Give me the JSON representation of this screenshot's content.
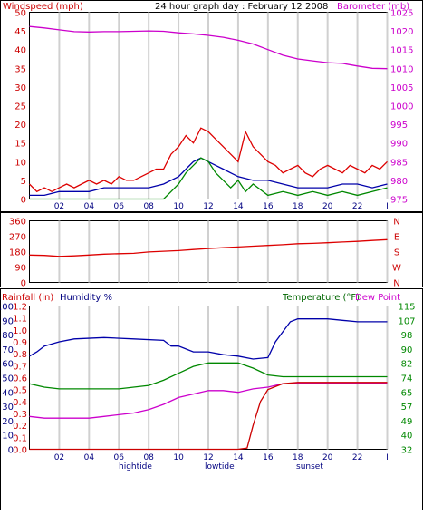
{
  "chart_data": [
    {
      "type": "line",
      "title": "24 hour graph day : February 12 2008",
      "left_axis_label": "Windspeed (mph)",
      "right_axis_label": "Barometer (mb)",
      "x_ticks": [
        "02",
        "04",
        "06",
        "08",
        "10",
        "12",
        "14",
        "16",
        "18",
        "20",
        "22",
        "I"
      ],
      "annotations": [
        "hightide",
        "lowtide",
        "sunset"
      ],
      "left_ylim": [
        0,
        50
      ],
      "left_ticks": [
        0,
        5,
        10,
        15,
        20,
        25,
        30,
        35,
        40,
        45,
        50
      ],
      "right_ylim": [
        975,
        1025
      ],
      "right_ticks": [
        975,
        980,
        985,
        990,
        995,
        1000,
        1005,
        1010,
        1015,
        1020,
        1025
      ],
      "series": [
        {
          "color": "#cc00cc",
          "axis": "right",
          "values": [
            [
              0,
              1021.2
            ],
            [
              1,
              1020.8
            ],
            [
              2,
              1020.3
            ],
            [
              3,
              1019.8
            ],
            [
              4,
              1019.7
            ],
            [
              5,
              1019.8
            ],
            [
              6,
              1019.8
            ],
            [
              7,
              1019.9
            ],
            [
              8,
              1020.0
            ],
            [
              9,
              1019.9
            ],
            [
              10,
              1019.5
            ],
            [
              11,
              1019.2
            ],
            [
              12,
              1018.8
            ],
            [
              13,
              1018.3
            ],
            [
              14,
              1017.5
            ],
            [
              15,
              1016.5
            ],
            [
              16,
              1015.0
            ],
            [
              17,
              1013.5
            ],
            [
              18,
              1012.5
            ],
            [
              19,
              1012.0
            ],
            [
              20,
              1011.5
            ],
            [
              21,
              1011.3
            ],
            [
              22,
              1010.6
            ],
            [
              23,
              1010.0
            ],
            [
              24,
              1009.9
            ]
          ]
        },
        {
          "color": "#dd0000",
          "axis": "left",
          "values": [
            [
              0,
              4
            ],
            [
              0.5,
              2
            ],
            [
              1,
              3
            ],
            [
              1.5,
              2
            ],
            [
              2,
              3
            ],
            [
              2.5,
              4
            ],
            [
              3,
              3
            ],
            [
              3.5,
              4
            ],
            [
              4,
              5
            ],
            [
              4.5,
              4
            ],
            [
              5,
              5
            ],
            [
              5.5,
              4
            ],
            [
              6,
              6
            ],
            [
              6.5,
              5
            ],
            [
              7,
              5
            ],
            [
              7.5,
              6
            ],
            [
              8,
              7
            ],
            [
              8.5,
              8
            ],
            [
              9,
              8
            ],
            [
              9.5,
              12
            ],
            [
              10,
              14
            ],
            [
              10.5,
              17
            ],
            [
              11,
              15
            ],
            [
              11.5,
              19
            ],
            [
              12,
              18
            ],
            [
              12.5,
              16
            ],
            [
              13,
              14
            ],
            [
              13.5,
              12
            ],
            [
              14,
              10
            ],
            [
              14.5,
              18
            ],
            [
              15,
              14
            ],
            [
              15.5,
              12
            ],
            [
              16,
              10
            ],
            [
              16.5,
              9
            ],
            [
              17,
              7
            ],
            [
              17.5,
              8
            ],
            [
              18,
              9
            ],
            [
              18.5,
              7
            ],
            [
              19,
              6
            ],
            [
              19.5,
              8
            ],
            [
              20,
              9
            ],
            [
              20.5,
              8
            ],
            [
              21,
              7
            ],
            [
              21.5,
              9
            ],
            [
              22,
              8
            ],
            [
              22.5,
              7
            ],
            [
              23,
              9
            ],
            [
              23.5,
              8
            ],
            [
              24,
              10
            ]
          ]
        },
        {
          "color": "#0000aa",
          "axis": "left",
          "values": [
            [
              0,
              1
            ],
            [
              1,
              1
            ],
            [
              2,
              2
            ],
            [
              3,
              2
            ],
            [
              4,
              2
            ],
            [
              5,
              3
            ],
            [
              6,
              3
            ],
            [
              7,
              3
            ],
            [
              8,
              3
            ],
            [
              9,
              4
            ],
            [
              10,
              6
            ],
            [
              10.5,
              8
            ],
            [
              11,
              10
            ],
            [
              11.5,
              11
            ],
            [
              12,
              10
            ],
            [
              12.5,
              9
            ],
            [
              13,
              8
            ],
            [
              13.5,
              7
            ],
            [
              14,
              6
            ],
            [
              15,
              5
            ],
            [
              16,
              5
            ],
            [
              17,
              4
            ],
            [
              18,
              3
            ],
            [
              19,
              3
            ],
            [
              20,
              3
            ],
            [
              21,
              4
            ],
            [
              22,
              4
            ],
            [
              23,
              3
            ],
            [
              24,
              4
            ]
          ]
        },
        {
          "color": "#008800",
          "axis": "left",
          "values": [
            [
              0,
              0
            ],
            [
              2,
              0
            ],
            [
              4,
              0
            ],
            [
              6,
              0
            ],
            [
              8,
              0
            ],
            [
              9,
              0
            ],
            [
              9.5,
              2
            ],
            [
              10,
              4
            ],
            [
              10.5,
              7
            ],
            [
              11,
              9
            ],
            [
              11.5,
              11
            ],
            [
              12,
              10
            ],
            [
              12.5,
              7
            ],
            [
              13,
              5
            ],
            [
              13.5,
              3
            ],
            [
              14,
              5
            ],
            [
              14.5,
              2
            ],
            [
              15,
              4
            ],
            [
              16,
              1
            ],
            [
              17,
              2
            ],
            [
              18,
              1
            ],
            [
              19,
              2
            ],
            [
              20,
              1
            ],
            [
              21,
              2
            ],
            [
              22,
              1
            ],
            [
              23,
              2
            ],
            [
              24,
              3
            ]
          ]
        }
      ]
    },
    {
      "type": "line",
      "ylim": [
        0,
        360
      ],
      "left_ticks": [
        0,
        90,
        180,
        270,
        360
      ],
      "right_labels": [
        "N",
        "W",
        "S",
        "E",
        "N"
      ],
      "series": [
        {
          "color": "#dd0000",
          "values": [
            [
              0,
              160
            ],
            [
              1,
              158
            ],
            [
              2,
              152
            ],
            [
              3,
              155
            ],
            [
              4,
              160
            ],
            [
              5,
              165
            ],
            [
              6,
              168
            ],
            [
              7,
              170
            ],
            [
              8,
              178
            ],
            [
              9,
              182
            ],
            [
              10,
              186
            ],
            [
              11,
              192
            ],
            [
              12,
              198
            ],
            [
              13,
              203
            ],
            [
              14,
              207
            ],
            [
              15,
              212
            ],
            [
              16,
              216
            ],
            [
              17,
              220
            ],
            [
              18,
              226
            ],
            [
              19,
              228
            ],
            [
              20,
              232
            ],
            [
              21,
              236
            ],
            [
              22,
              240
            ],
            [
              23,
              245
            ],
            [
              24,
              250
            ]
          ]
        }
      ]
    },
    {
      "type": "line",
      "labels": {
        "rainfall": "Rainfall (in)",
        "humidity": "Humidity %",
        "temperature": "Temperature (°F)",
        "dewpoint": "Dew Point"
      },
      "x_ticks": [
        "02",
        "04",
        "06",
        "08",
        "10",
        "12",
        "14",
        "16",
        "18",
        "20",
        "22",
        "I"
      ],
      "annotations": [
        "hightide",
        "lowtide",
        "sunset"
      ],
      "humidity_ticks": [
        0,
        10,
        20,
        30,
        40,
        50,
        60,
        70,
        80,
        90,
        100
      ],
      "rain_ticks": [
        "0.0",
        "0.1",
        "0.2",
        "0.3",
        "0.4",
        "0.5",
        "0.6",
        "0.7",
        "0.8",
        "0.9",
        "1.0",
        "1.1",
        "1.2"
      ],
      "temp_ticks": [
        32,
        40,
        49,
        57,
        65,
        74,
        82,
        90,
        98,
        107,
        115
      ],
      "temp_ylim": [
        32,
        115
      ],
      "series": [
        {
          "color": "#0000aa",
          "axis": "humidity",
          "values": [
            [
              0,
              65
            ],
            [
              0.5,
              68
            ],
            [
              1,
              72
            ],
            [
              2,
              75
            ],
            [
              3,
              77
            ],
            [
              5,
              78
            ],
            [
              7,
              77
            ],
            [
              9,
              76
            ],
            [
              9.5,
              72
            ],
            [
              10,
              72
            ],
            [
              10.5,
              70
            ],
            [
              11,
              68
            ],
            [
              12,
              68
            ],
            [
              13,
              66
            ],
            [
              14,
              65
            ],
            [
              15,
              63
            ],
            [
              16,
              64
            ],
            [
              16.5,
              75
            ],
            [
              17,
              82
            ],
            [
              17.5,
              89
            ],
            [
              18,
              91
            ],
            [
              19,
              91
            ],
            [
              20,
              91
            ],
            [
              21,
              90
            ],
            [
              22,
              89
            ],
            [
              24,
              89
            ]
          ]
        },
        {
          "color": "#008800",
          "axis": "temp",
          "values": [
            [
              0,
              70
            ],
            [
              1,
              68
            ],
            [
              2,
              67
            ],
            [
              3,
              67
            ],
            [
              4,
              67
            ],
            [
              5,
              67
            ],
            [
              6,
              67
            ],
            [
              7,
              68
            ],
            [
              8,
              69
            ],
            [
              9,
              72
            ],
            [
              10,
              76
            ],
            [
              11,
              80
            ],
            [
              12,
              82
            ],
            [
              13,
              82
            ],
            [
              14,
              82
            ],
            [
              15,
              79
            ],
            [
              16,
              75
            ],
            [
              17,
              74
            ],
            [
              18,
              74
            ],
            [
              19,
              74
            ],
            [
              20,
              74
            ],
            [
              21,
              74
            ],
            [
              22,
              74
            ],
            [
              23,
              74
            ],
            [
              24,
              74
            ]
          ]
        },
        {
          "color": "#cc00cc",
          "axis": "temp",
          "values": [
            [
              0,
              51
            ],
            [
              1,
              50
            ],
            [
              2,
              50
            ],
            [
              3,
              50
            ],
            [
              4,
              50
            ],
            [
              5,
              51
            ],
            [
              6,
              52
            ],
            [
              7,
              53
            ],
            [
              8,
              55
            ],
            [
              9,
              58
            ],
            [
              10,
              62
            ],
            [
              11,
              64
            ],
            [
              12,
              66
            ],
            [
              13,
              66
            ],
            [
              14,
              65
            ],
            [
              15,
              67
            ],
            [
              16,
              68
            ],
            [
              17,
              70
            ],
            [
              18,
              70
            ],
            [
              19,
              70
            ],
            [
              20,
              70
            ],
            [
              21,
              70
            ],
            [
              22,
              70
            ],
            [
              23,
              70
            ],
            [
              24,
              70
            ]
          ]
        },
        {
          "color": "#cc0000",
          "axis": "rain",
          "values": [
            [
              0,
              0
            ],
            [
              14,
              0
            ],
            [
              14.6,
              0.01
            ],
            [
              15,
              0.2
            ],
            [
              15.5,
              0.4
            ],
            [
              16,
              0.5
            ],
            [
              17,
              0.55
            ],
            [
              18,
              0.56
            ],
            [
              20,
              0.56
            ],
            [
              22,
              0.56
            ],
            [
              24,
              0.56
            ]
          ]
        }
      ]
    }
  ]
}
